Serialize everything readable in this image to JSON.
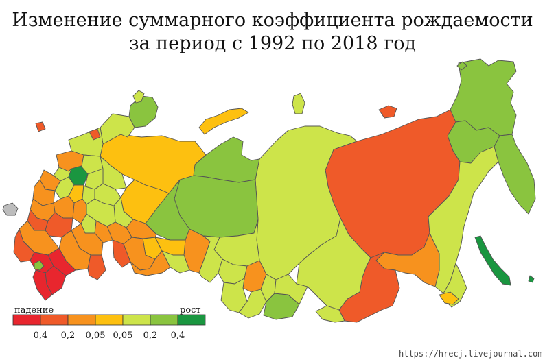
{
  "title": {
    "line1": "Изменение суммарного коэффициента рождаемости",
    "line2": "за период с 1992 по 2018 год"
  },
  "legend": {
    "left_label": "падение",
    "right_label": "рост",
    "classes": [
      {
        "meaning": "decline > 0.4",
        "color": "#e8262e"
      },
      {
        "meaning": "decline 0.2–0.4",
        "color": "#ef5a29"
      },
      {
        "meaning": "decline 0.05–0.2",
        "color": "#f7921e"
      },
      {
        "meaning": "change -0.05–0",
        "color": "#fdc010"
      },
      {
        "meaning": "growth 0–0.05",
        "color": "#cde44a"
      },
      {
        "meaning": "growth 0.05–0.2",
        "color": "#8ac43f"
      },
      {
        "meaning": "growth > 0.4",
        "color": "#1a9640"
      }
    ],
    "ticks": [
      "0,4",
      "0,2",
      "0,05",
      "0,05",
      "0,2",
      "0,4"
    ]
  },
  "watermark": "https://hrecj.livejournal.com",
  "map": {
    "no_data_color": "#bdbdbd",
    "regions": [
      {
        "name": "Chukotka",
        "class": 5
      },
      {
        "name": "Kamchatka",
        "class": 5
      },
      {
        "name": "Magadan",
        "class": 5
      },
      {
        "name": "Sakhalin",
        "class": 6
      },
      {
        "name": "Khabarovsk",
        "class": 4
      },
      {
        "name": "Yakutia",
        "class": 1
      },
      {
        "name": "Amur",
        "class": 2
      },
      {
        "name": "Krasnoyarsk",
        "class": 4
      },
      {
        "name": "Yamalo-Nenets",
        "class": 5
      },
      {
        "name": "Khanty-Mansi",
        "class": 5
      },
      {
        "name": "Tyumen",
        "class": 2
      },
      {
        "name": "Tomsk",
        "class": 4
      },
      {
        "name": "Irkutsk",
        "class": 4
      },
      {
        "name": "Komi",
        "class": 3
      },
      {
        "name": "Arkhangelsk",
        "class": 3
      },
      {
        "name": "Moscow",
        "class": 6
      },
      {
        "name": "Dagestan",
        "class": 1
      },
      {
        "name": "Chechnya",
        "class": 0
      },
      {
        "name": "Crimea",
        "class": 7
      }
    ]
  }
}
